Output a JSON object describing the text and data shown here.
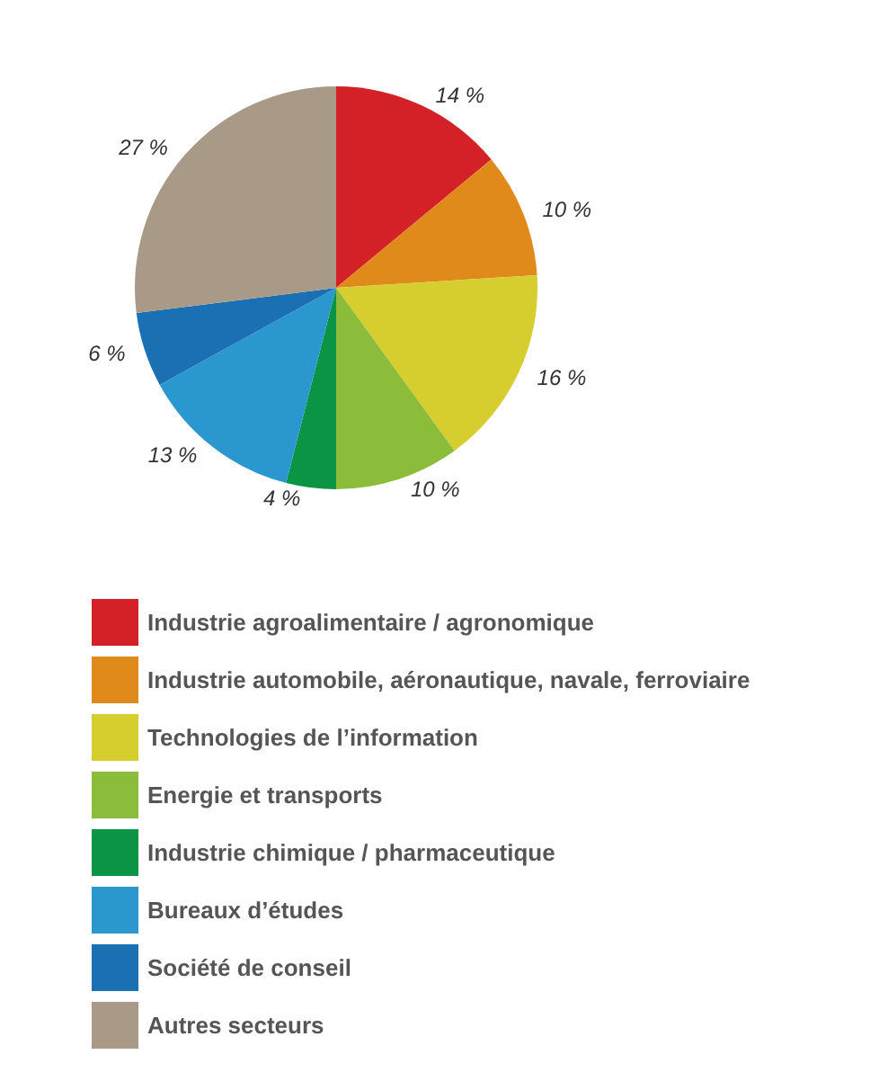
{
  "chart_data": {
    "type": "pie",
    "categories": [
      "Industrie agroalimentaire / agronomique",
      "Industrie automobile, aéronautique, navale, ferroviaire",
      "Technologies de l’information",
      "Energie et transports",
      "Industrie chimique / pharmaceutique",
      "Bureaux d’études",
      "Société de conseil",
      "Autres secteurs"
    ],
    "values": [
      14,
      10,
      16,
      10,
      4,
      13,
      6,
      27
    ],
    "value_labels": [
      "14 %",
      "10 %",
      "16 %",
      "10 %",
      "4 %",
      "13 %",
      "6 %",
      "27 %"
    ],
    "colors": [
      "#d42027",
      "#e08a1c",
      "#d6cd2f",
      "#8bbc3a",
      "#0a9444",
      "#2a97cf",
      "#1b6fb3",
      "#a89a86"
    ],
    "legend": "bottom"
  }
}
